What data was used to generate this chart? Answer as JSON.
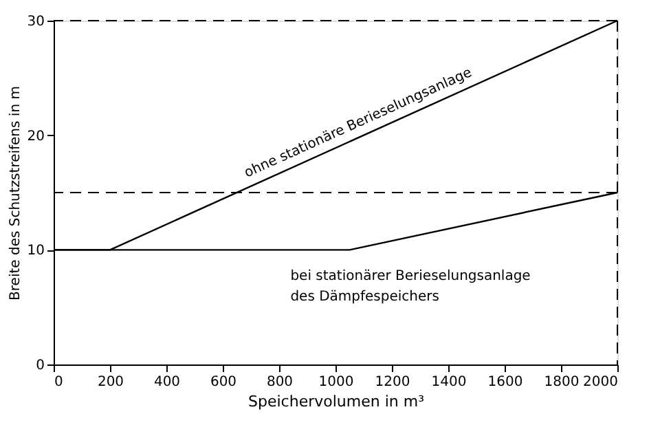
{
  "chart_data": {
    "type": "line",
    "xlabel": "Speichervolumen in m³",
    "ylabel": "Breite des Schutzstreifens in m",
    "series": [
      {
        "name": "ohne stationäre Berieselungsanlage",
        "color": "#000000",
        "x": [
          0,
          200,
          2000
        ],
        "values": [
          10,
          10,
          30
        ]
      },
      {
        "name": "bei stationärer Berieselungsanlage\ndes Dämpfespeichers",
        "color": "#000000",
        "x": [
          0,
          1050,
          2000
        ],
        "values": [
          10,
          10,
          15
        ]
      }
    ],
    "xlim": [
      0,
      2000
    ],
    "xticks": [
      0,
      200,
      400,
      600,
      800,
      1000,
      1200,
      1400,
      1600,
      1800,
      2000
    ],
    "ylim": [
      0,
      30
    ],
    "yticks": [
      0,
      10,
      20,
      30
    ],
    "ref_lines": [
      {
        "axis": "y",
        "value": 30,
        "line_style": "dashed",
        "color": "#000000"
      },
      {
        "axis": "y",
        "value": 15,
        "line_style": "dashed",
        "color": "#000000"
      },
      {
        "axis": "x",
        "value": 2000,
        "line_style": "dashed",
        "color": "#000000"
      }
    ],
    "grid": false,
    "marker": "none",
    "line_style": "solid"
  }
}
